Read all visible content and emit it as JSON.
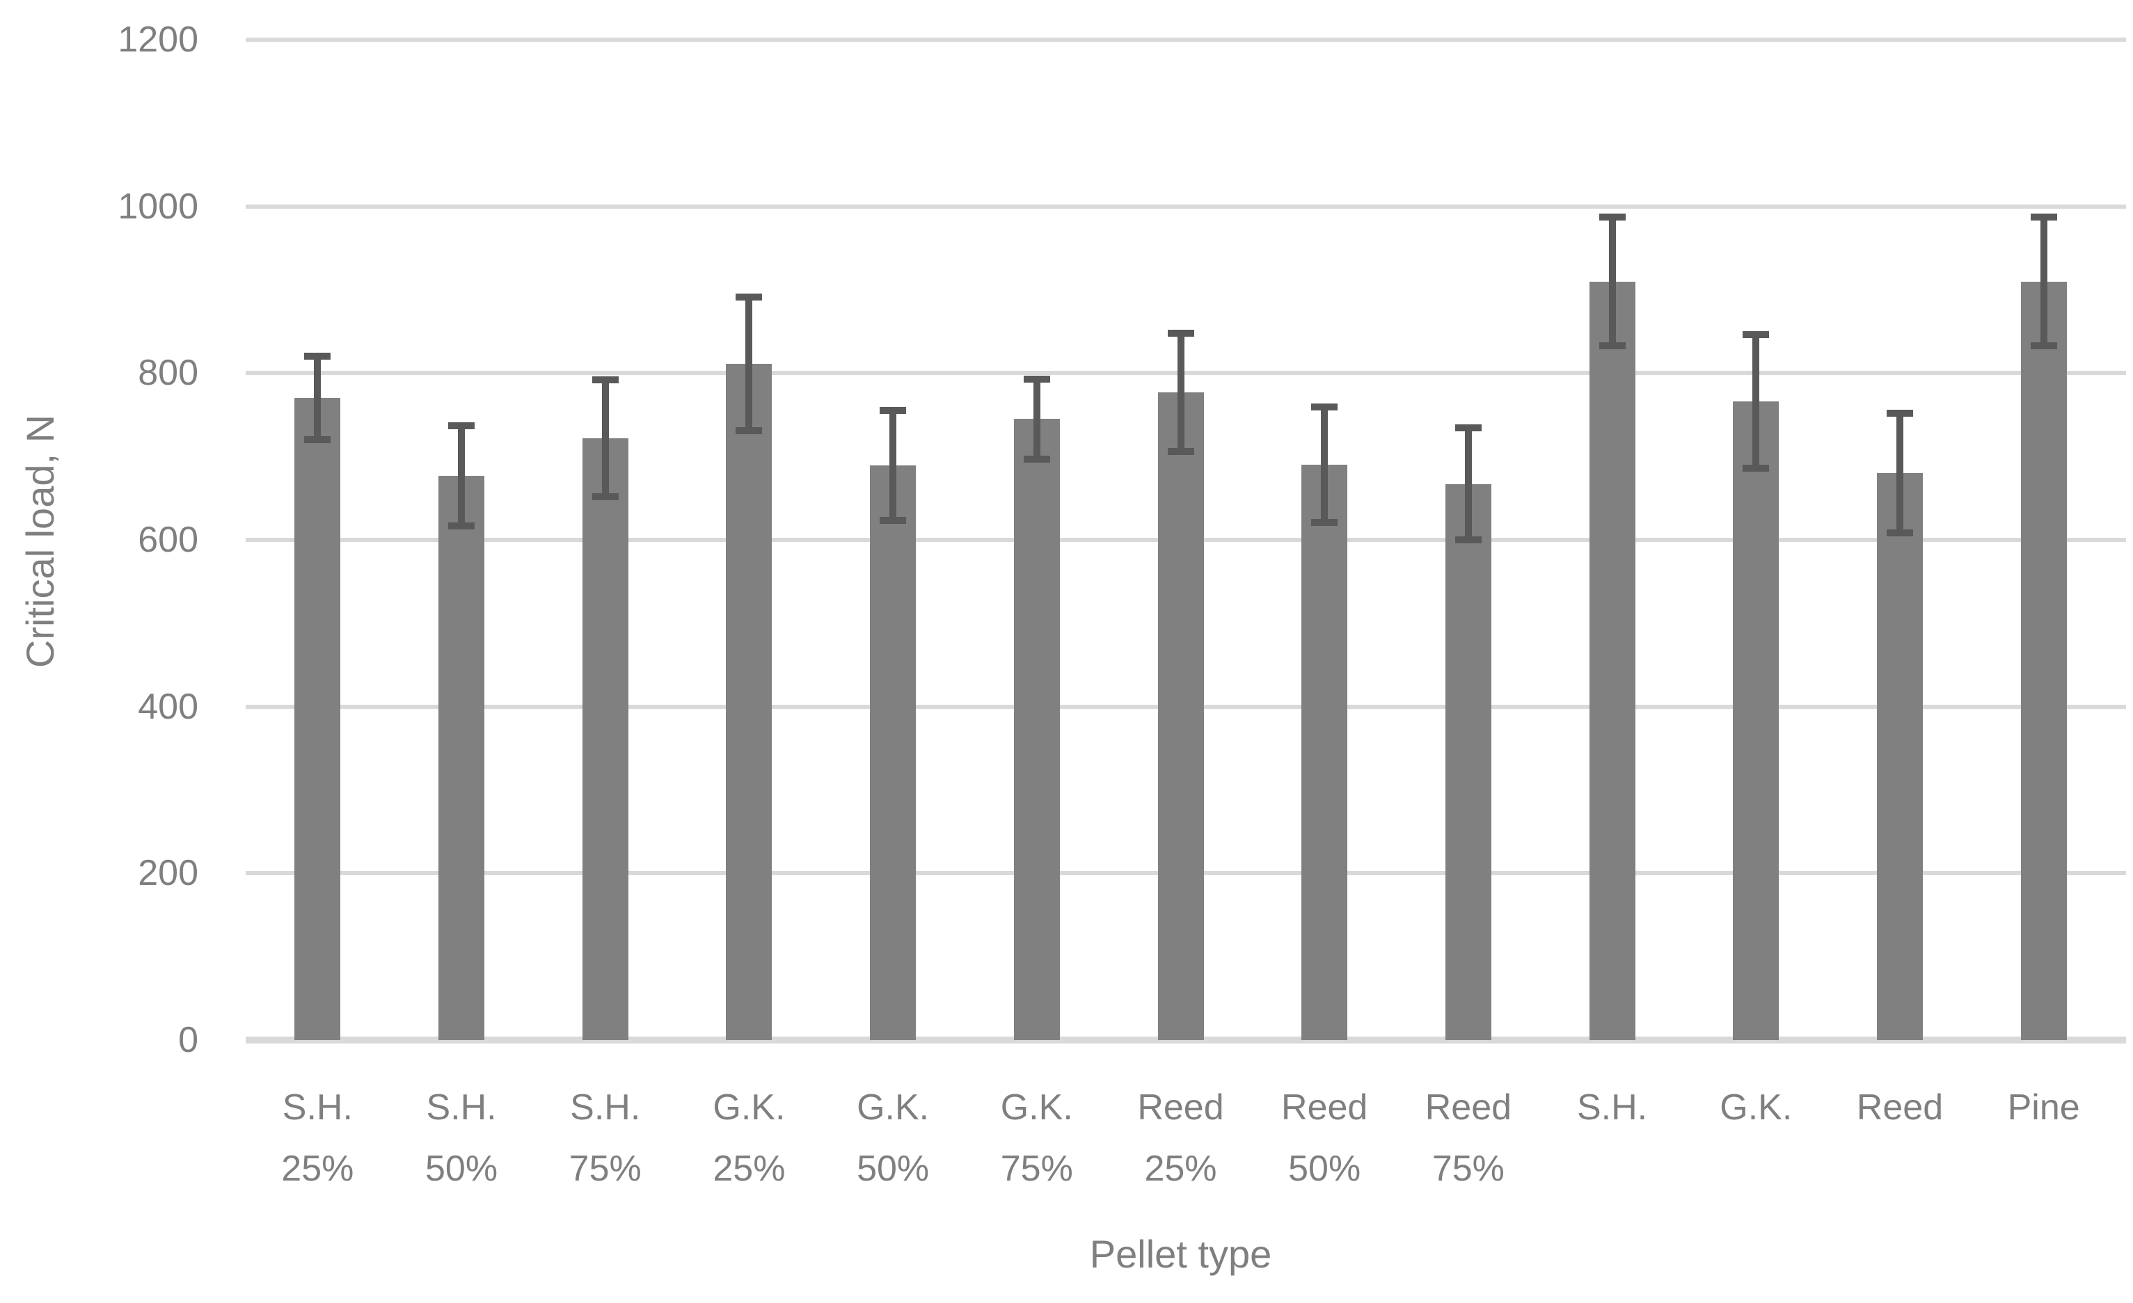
{
  "chart_data": {
    "type": "bar",
    "title": "",
    "xlabel": "Pellet type",
    "ylabel": "Critical load, N",
    "categories": [
      "S.H. 25%",
      "S.H. 50%",
      "S.H. 75%",
      "G.K. 25%",
      "G.K. 50%",
      "G.K. 75%",
      "Reed 25%",
      "Reed 50%",
      "Reed 75%",
      "S.H.",
      "G.K.",
      "Reed",
      "Pine"
    ],
    "values": [
      770,
      677,
      722,
      811,
      689,
      745,
      777,
      690,
      667,
      910,
      766,
      680,
      910
    ],
    "error_bars": [
      50,
      60,
      70,
      80,
      66,
      48,
      71,
      69,
      67,
      77,
      80,
      72,
      77
    ],
    "yticks": [
      0,
      200,
      400,
      600,
      800,
      1000,
      1200
    ],
    "ylim": [
      0,
      1200
    ],
    "grid": "horizontal-only",
    "legend": "none",
    "bar_series_count": 1,
    "colors": {
      "bar": "#808080",
      "error_bar": "#595959",
      "gridline": "#d9d9d9",
      "axis_line": "#d9d9d9",
      "label_text": "#7f7f7f",
      "background": "#ffffff"
    }
  }
}
